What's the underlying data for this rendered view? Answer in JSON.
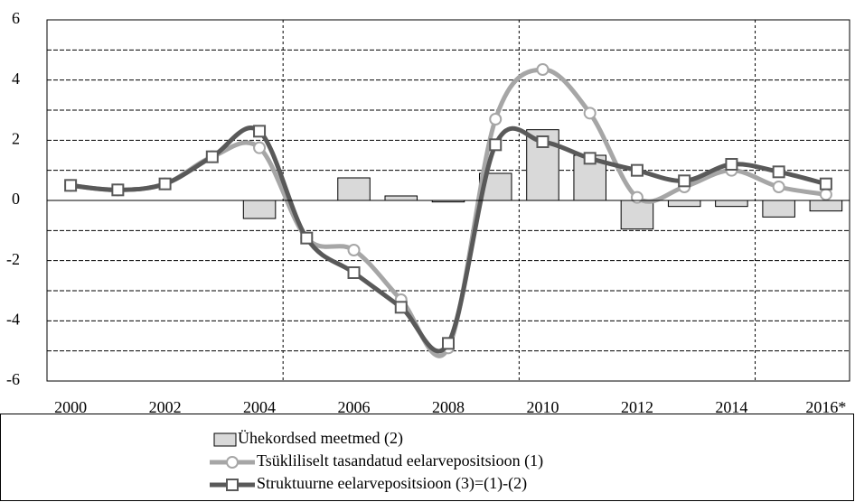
{
  "chart_data": {
    "type": "combo",
    "categories": [
      "2000",
      null,
      "2002",
      null,
      "2004",
      null,
      "2006",
      null,
      "2008",
      null,
      "2010",
      null,
      "2012",
      null,
      "2014",
      null,
      "2016*"
    ],
    "ylim": [
      -6,
      6
    ],
    "yticks": [
      -6,
      -4,
      -2,
      0,
      2,
      4,
      6
    ],
    "grid": true,
    "series": [
      {
        "name": "Ühekordsed meetmed (2)",
        "type": "bar",
        "color": "#d9d9d9",
        "values": [
          0,
          0,
          0,
          0,
          -0.6,
          0,
          0.75,
          0.15,
          -0.05,
          0.9,
          2.35,
          1.5,
          -0.95,
          -0.2,
          -0.2,
          -0.55,
          -0.35
        ]
      },
      {
        "name": "Tsükliliselt tasandatud eelarvepositsioon (1)",
        "type": "line",
        "marker": "circle",
        "color": "#a6a6a6",
        "values": [
          0.5,
          0.35,
          0.55,
          1.45,
          1.75,
          -1.25,
          -1.65,
          -3.3,
          -4.9,
          2.7,
          4.35,
          2.9,
          0.1,
          0.45,
          1.0,
          0.45,
          0.2
        ]
      },
      {
        "name": "Struktuurne eelarvepositsioon (3)=(1)-(2)",
        "type": "line",
        "marker": "square",
        "color": "#595959",
        "values": [
          0.5,
          0.35,
          0.55,
          1.45,
          2.3,
          -1.25,
          -2.4,
          -3.55,
          -4.75,
          1.85,
          1.95,
          1.4,
          1.0,
          0.65,
          1.2,
          0.95,
          0.55
        ]
      }
    ]
  }
}
